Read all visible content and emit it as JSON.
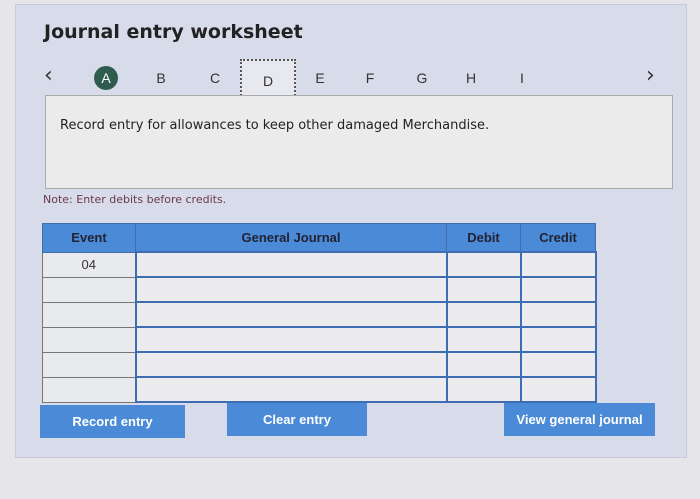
{
  "title": "Journal entry worksheet",
  "tabs": [
    "A",
    "B",
    "C",
    "D",
    "E",
    "F",
    "G",
    "H",
    "I"
  ],
  "prev_icon": "‹",
  "next_icon": "›",
  "description": "Record entry for allowances to keep other damaged Merchandise.",
  "note": "Note: Enter debits before credits.",
  "table": {
    "headers": [
      "Event",
      "General Journal",
      "Debit",
      "Credit"
    ],
    "rows": [
      [
        "04",
        "",
        "",
        ""
      ],
      [
        "",
        "",
        "",
        ""
      ],
      [
        "",
        "",
        "",
        ""
      ],
      [
        "",
        "",
        "",
        ""
      ],
      [
        "",
        "",
        "",
        ""
      ],
      [
        "",
        "",
        "",
        ""
      ]
    ]
  },
  "buttons": {
    "record": "Record entry",
    "clear": "Clear entry",
    "view": "View general journal"
  },
  "colors": {
    "accent": "#4a8ad6",
    "done_tab": "#2e5d4f"
  }
}
